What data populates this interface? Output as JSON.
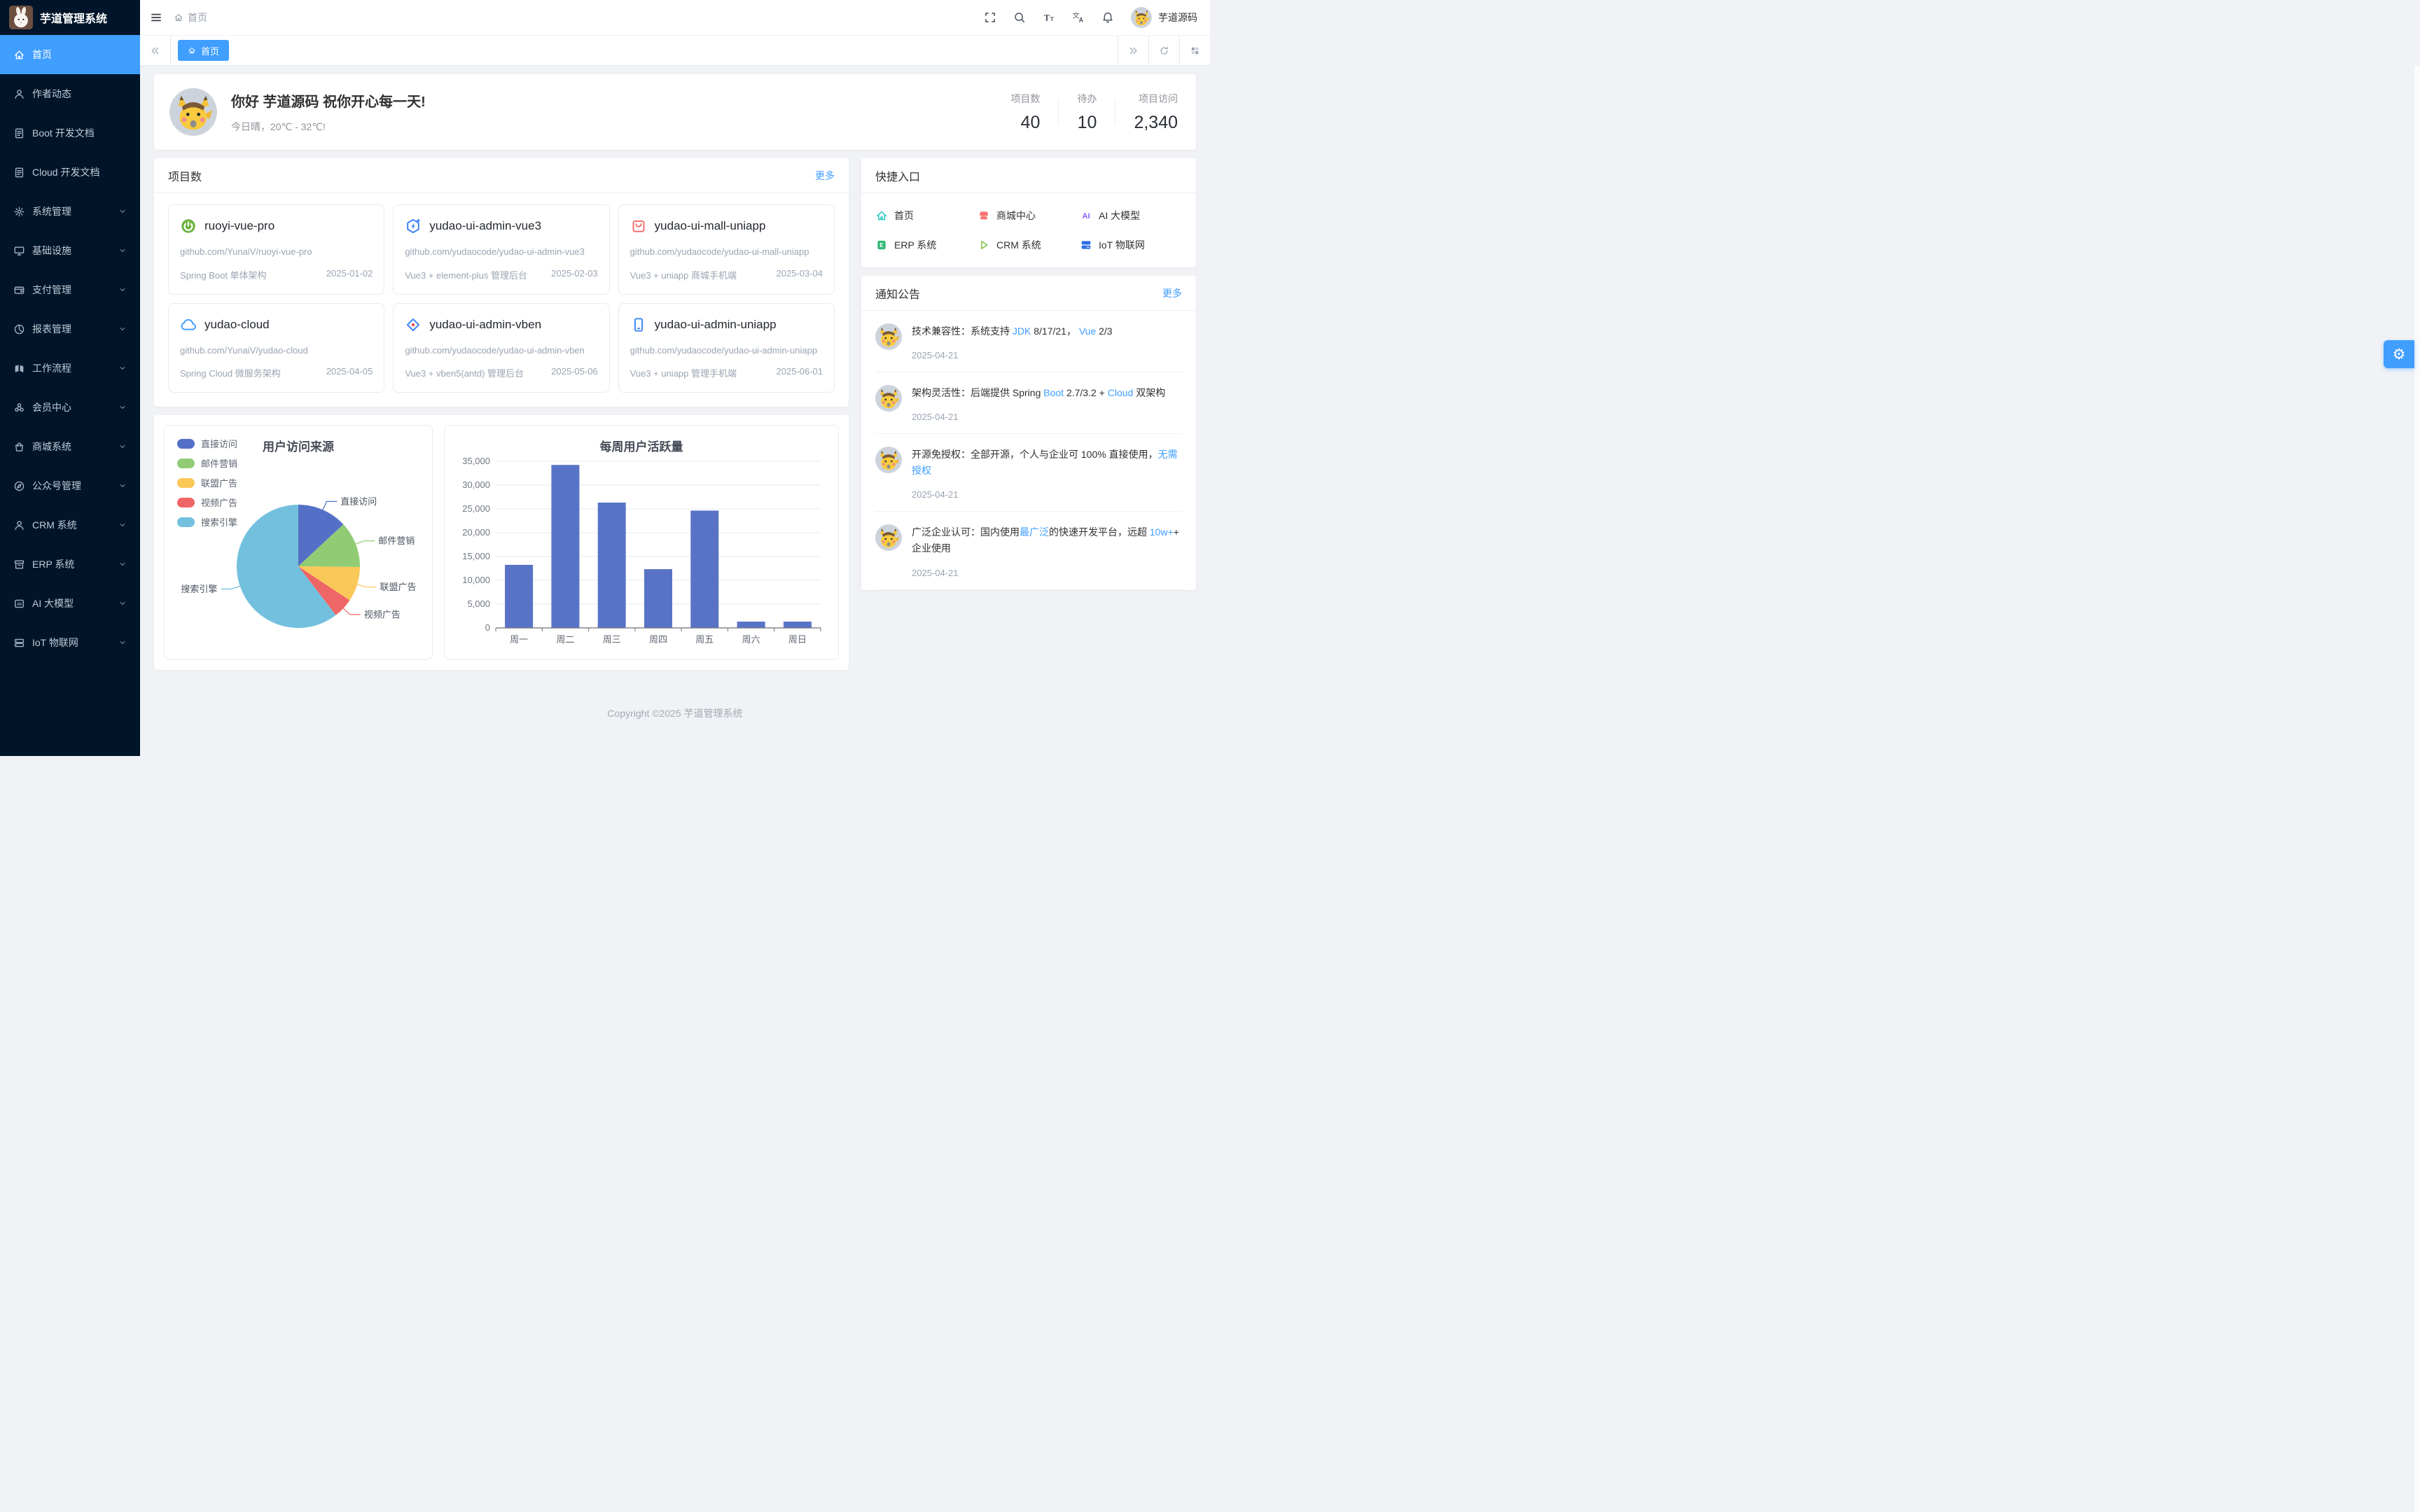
{
  "app": {
    "title": "芋道管理系统"
  },
  "header": {
    "breadcrumb": "首页",
    "user_name": "芋道源码",
    "icons": [
      "fullscreen-icon",
      "search-icon",
      "font-size-icon",
      "language-icon",
      "bell-icon"
    ]
  },
  "tabs": {
    "active": "首页"
  },
  "sidebar": {
    "items": [
      {
        "key": "home",
        "label": "首页",
        "icon": "home-icon",
        "active": true,
        "children": false
      },
      {
        "key": "author",
        "label": "作者动态",
        "icon": "user-icon",
        "active": false,
        "children": false
      },
      {
        "key": "boot-doc",
        "label": "Boot 开发文档",
        "icon": "document-icon",
        "active": false,
        "children": false
      },
      {
        "key": "cloud-doc",
        "label": "Cloud 开发文档",
        "icon": "document-icon",
        "active": false,
        "children": false
      },
      {
        "key": "system",
        "label": "系统管理",
        "icon": "gear-icon",
        "active": false,
        "children": true
      },
      {
        "key": "infra",
        "label": "基础设施",
        "icon": "monitor-icon",
        "active": false,
        "children": true
      },
      {
        "key": "pay",
        "label": "支付管理",
        "icon": "wallet-icon",
        "active": false,
        "children": true
      },
      {
        "key": "report",
        "label": "报表管理",
        "icon": "pie-chart-icon",
        "active": false,
        "children": true
      },
      {
        "key": "workflow",
        "label": "工作流程",
        "icon": "workflow-icon",
        "active": false,
        "children": true
      },
      {
        "key": "member",
        "label": "会员中心",
        "icon": "link-icon",
        "active": false,
        "children": true
      },
      {
        "key": "mall",
        "label": "商城系统",
        "icon": "shop-icon",
        "active": false,
        "children": true
      },
      {
        "key": "mp",
        "label": "公众号管理",
        "icon": "compass-icon",
        "active": false,
        "children": true
      },
      {
        "key": "crm",
        "label": "CRM 系统",
        "icon": "user-icon",
        "active": false,
        "children": true
      },
      {
        "key": "erp",
        "label": "ERP 系统",
        "icon": "archive-icon",
        "active": false,
        "children": true
      },
      {
        "key": "ai",
        "label": "AI 大模型",
        "icon": "ai-icon",
        "active": false,
        "children": true
      },
      {
        "key": "iot",
        "label": "IoT 物联网",
        "icon": "server-icon",
        "active": false,
        "children": true
      }
    ]
  },
  "welcome": {
    "greeting": "你好 芋道源码 祝你开心每一天!",
    "weather": "今日晴，20℃ - 32℃!",
    "stats": [
      {
        "label": "项目数",
        "value": "40"
      },
      {
        "label": "待办",
        "value": "10"
      },
      {
        "label": "项目访问",
        "value": "2,340"
      }
    ]
  },
  "projects": {
    "title": "项目数",
    "more": "更多",
    "items": [
      {
        "key": "ruoyi-vue-pro",
        "name": "ruoyi-vue-pro",
        "icon": "spring-boot-icon",
        "color": "#6db33f",
        "url": "github.com/YunaiV/ruoyi-vue-pro",
        "desc": "Spring Boot 单体架构",
        "date": "2025-01-02"
      },
      {
        "key": "yudao-ui-admin-vue3",
        "name": "yudao-ui-admin-vue3",
        "icon": "vue3-icon",
        "color": "#3b82f6",
        "url": "github.com/yudaocode/yudao-ui-admin-vue3",
        "desc": "Vue3 + element-plus 管理后台",
        "date": "2025-02-03"
      },
      {
        "key": "yudao-ui-mall-uniapp",
        "name": "yudao-ui-mall-uniapp",
        "icon": "mall-bag-icon",
        "color": "#f56c6c",
        "url": "github.com/yudaocode/yudao-ui-mall-uniapp",
        "desc": "Vue3 + uniapp 商城手机端",
        "date": "2025-03-04"
      },
      {
        "key": "yudao-cloud",
        "name": "yudao-cloud",
        "icon": "cloud-icon",
        "color": "#409eff",
        "url": "github.com/YunaiV/yudao-cloud",
        "desc": "Spring Cloud 微服务架构",
        "date": "2025-04-05"
      },
      {
        "key": "yudao-ui-admin-vben",
        "name": "yudao-ui-admin-vben",
        "icon": "vben-icon",
        "color": "#3b82f6",
        "url": "github.com/yudaocode/yudao-ui-admin-vben",
        "desc": "Vue3 + vben5(antd) 管理后台",
        "date": "2025-05-06"
      },
      {
        "key": "yudao-ui-admin-uniapp",
        "name": "yudao-ui-admin-uniapp",
        "icon": "phone-icon",
        "color": "#3b82f6",
        "url": "github.com/yudaocode/yudao-ui-admin-uniapp",
        "desc": "Vue3 + uniapp 管理手机端",
        "date": "2025-06-01"
      }
    ]
  },
  "quick": {
    "title": "快捷入口",
    "items": [
      {
        "key": "home",
        "label": "首页",
        "icon": "home-icon",
        "color": "#1fc6c0"
      },
      {
        "key": "mall-center",
        "label": "商城中心",
        "icon": "storefront-icon",
        "color": "#f87272"
      },
      {
        "key": "ai-model",
        "label": "AI 大模型",
        "icon": "ai-badge-icon",
        "color": "#8b5cf6"
      },
      {
        "key": "erp",
        "label": "ERP 系统",
        "icon": "erp-icon",
        "color": "#2eb876"
      },
      {
        "key": "crm",
        "label": "CRM 系统",
        "icon": "play-icon",
        "color": "#7ac143"
      },
      {
        "key": "iot",
        "label": "IoT 物联网",
        "icon": "server-filled-icon",
        "color": "#2e6be6"
      }
    ]
  },
  "notices": {
    "title": "通知公告",
    "more": "更多",
    "items": [
      {
        "date": "2025-04-21",
        "segments": [
          {
            "t": "技术兼容性：系统支持 "
          },
          {
            "t": "JDK",
            "hl": true
          },
          {
            "t": " 8/17/21， "
          },
          {
            "t": "Vue",
            "hl": true
          },
          {
            "t": " 2/3"
          }
        ]
      },
      {
        "date": "2025-04-21",
        "segments": [
          {
            "t": "架构灵活性：后端提供 Spring "
          },
          {
            "t": "Boot",
            "hl": true
          },
          {
            "t": " 2.7/3.2 + "
          },
          {
            "t": "Cloud",
            "hl": true
          },
          {
            "t": " 双架构"
          }
        ]
      },
      {
        "date": "2025-04-21",
        "segments": [
          {
            "t": "开源免授权：全部开源，个人与企业可 100% 直接使用，"
          },
          {
            "t": "无需授权",
            "hl": true
          }
        ]
      },
      {
        "date": "2025-04-21",
        "segments": [
          {
            "t": "广泛企业认可：国内使用"
          },
          {
            "t": "最广泛",
            "hl": true
          },
          {
            "t": "的快速开发平台，远超 "
          },
          {
            "t": "10w+",
            "hl": true
          },
          {
            "t": "+ 企业使用"
          }
        ]
      }
    ]
  },
  "chart_data": [
    {
      "type": "pie",
      "title": "用户访问来源",
      "legend_position": "top-left",
      "labels": [
        "直接访问",
        "邮件营销",
        "联盟广告",
        "视频广告",
        "搜索引擎"
      ],
      "values": [
        335,
        310,
        234,
        135,
        1548
      ],
      "colors": [
        "#5470c6",
        "#91cc75",
        "#fac858",
        "#ee6666",
        "#73c0de"
      ]
    },
    {
      "type": "bar",
      "title": "每周用户活跃量",
      "categories": [
        "周一",
        "周二",
        "周三",
        "周四",
        "周五",
        "周六",
        "周日"
      ],
      "values": [
        13253,
        34235,
        26321,
        12340,
        24643,
        1322,
        1324
      ],
      "ylim": [
        0,
        35000
      ],
      "ytick_step": 5000,
      "bar_color": "#5873c6",
      "grid": true
    }
  ],
  "footer": {
    "copyright": "Copyright ©2025 芋道管理系统"
  }
}
